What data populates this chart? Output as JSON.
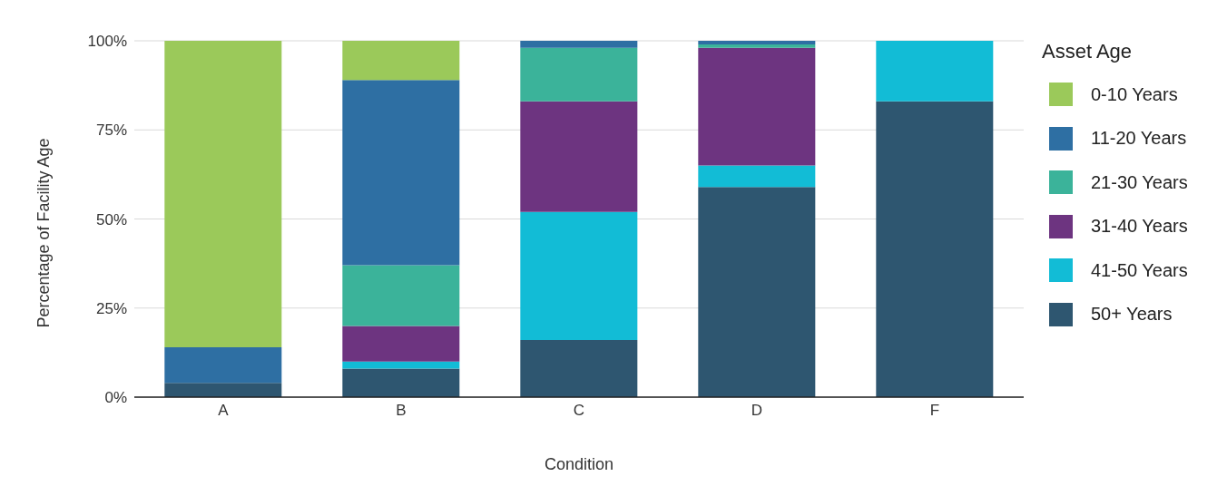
{
  "chart_data": {
    "type": "bar",
    "stacked": true,
    "xlabel": "Condition",
    "ylabel": "Percentage of Facility Age",
    "legend_title": "Asset Age",
    "legend": "right",
    "grid": "y",
    "categories": [
      "A",
      "B",
      "C",
      "D",
      "F"
    ],
    "ylim": [
      0,
      100
    ],
    "yticks": [
      {
        "value": 0,
        "label": "0%"
      },
      {
        "value": 25,
        "label": "25%"
      },
      {
        "value": 50,
        "label": "50%"
      },
      {
        "value": 75,
        "label": "75%"
      },
      {
        "value": 100,
        "label": "100%"
      }
    ],
    "series": [
      {
        "name": "50+ Years",
        "color": "#2e5670",
        "values": [
          4,
          8,
          16,
          59,
          83
        ]
      },
      {
        "name": "41-50 Years",
        "color": "#12bcd6",
        "values": [
          0,
          2,
          36,
          6,
          17
        ]
      },
      {
        "name": "31-40 Years",
        "color": "#6d3480",
        "values": [
          0,
          10,
          31,
          33,
          0
        ]
      },
      {
        "name": "21-30 Years",
        "color": "#3bb39a",
        "values": [
          0,
          17,
          15,
          1,
          0
        ]
      },
      {
        "name": "11-20 Years",
        "color": "#2e6fa3",
        "values": [
          10,
          52,
          2,
          1,
          0
        ]
      },
      {
        "name": "0-10 Years",
        "color": "#9bc95a",
        "values": [
          86,
          11,
          0,
          0,
          0
        ]
      }
    ]
  }
}
